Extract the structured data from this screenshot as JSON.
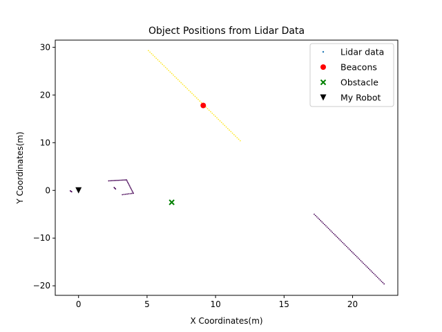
{
  "chart_data": {
    "type": "scatter",
    "title": "Object Positions from Lidar Data",
    "xlabel": "X Coordinates(m)",
    "ylabel": "Y Coordinates(m)",
    "xlim": [
      -1.7,
      23.3
    ],
    "ylim": [
      -22.0,
      31.5
    ],
    "xticks": [
      0,
      5,
      10,
      15,
      20
    ],
    "yticks": [
      -20,
      -10,
      0,
      10,
      20,
      30
    ],
    "grid": false,
    "legend_position": "top-right",
    "series": [
      {
        "name": "Lidar data",
        "marker": "point",
        "legend_color": "#1f77b4",
        "segments": [
          {
            "color": "#fde725",
            "from": [
              5.1,
              29.3
            ],
            "to": [
              11.8,
              10.4
            ],
            "count": 60
          },
          {
            "color": "#440154",
            "from": [
              17.2,
              -5.0
            ],
            "to": [
              22.3,
              -19.6
            ],
            "count": 55
          },
          {
            "color": "#440154",
            "from": [
              2.2,
              2.0
            ],
            "to": [
              3.5,
              2.2
            ],
            "count": 14
          },
          {
            "color": "#440154",
            "from": [
              3.5,
              2.2
            ],
            "to": [
              4.0,
              -0.6
            ],
            "count": 12
          },
          {
            "color": "#440154",
            "from": [
              4.0,
              -0.6
            ],
            "to": [
              3.2,
              -0.9
            ],
            "count": 8
          },
          {
            "color": "#440154",
            "from": [
              -0.6,
              -0.1
            ],
            "to": [
              -0.5,
              -0.3
            ],
            "count": 4
          },
          {
            "color": "#440154",
            "from": [
              2.6,
              0.6
            ],
            "to": [
              2.7,
              0.3
            ],
            "count": 3
          }
        ]
      },
      {
        "name": "Beacons",
        "marker": "circle",
        "color": "#ff0000",
        "points": [
          [
            9.1,
            17.8
          ]
        ]
      },
      {
        "name": "Obstacle",
        "marker": "x",
        "color": "#008000",
        "points": [
          [
            6.8,
            -2.5
          ]
        ]
      },
      {
        "name": "My Robot",
        "marker": "triangle-down",
        "color": "#000000",
        "points": [
          [
            0.0,
            0.0
          ]
        ]
      }
    ]
  }
}
